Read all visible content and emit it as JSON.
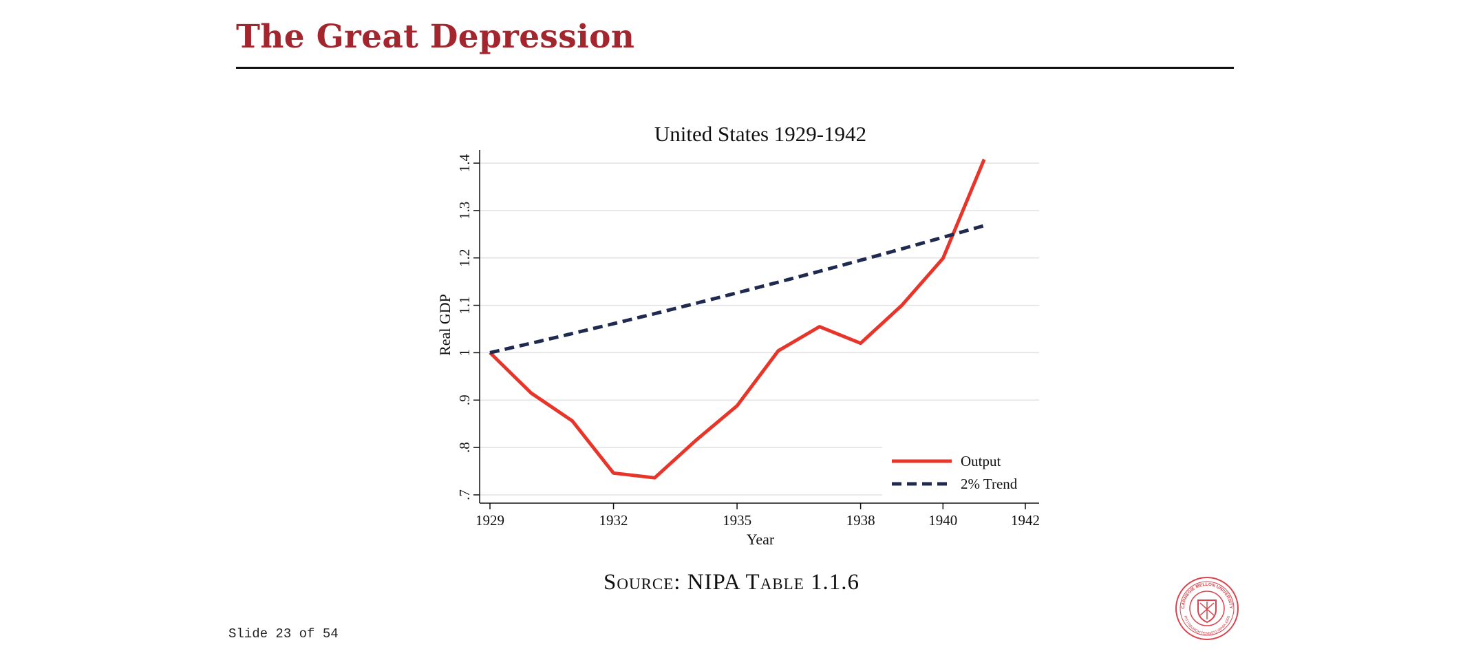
{
  "slide": {
    "title": "The Great Depression",
    "source": "Source: NIPA Table 1.1.6",
    "counter": "Slide 23 of 54",
    "title_color": "#a3262e",
    "seal": {
      "icon": "carnegie-mellon-seal-icon",
      "text_top": "CARNEGIE MELLON UNIVERSITY",
      "text_bottom": "PITTSBURGH PENNSYLVANIA 1900",
      "color": "#d9434c"
    }
  },
  "chart_data": {
    "type": "line",
    "title": "United States 1929-1942",
    "xlabel": "Year",
    "ylabel": "Real GDP",
    "xlim": [
      1929,
      1942
    ],
    "ylim": [
      0.7,
      1.4
    ],
    "xticks": [
      1929,
      1932,
      1935,
      1938,
      1940,
      1942
    ],
    "yticks": [
      0.7,
      0.8,
      0.9,
      1.0,
      1.1,
      1.2,
      1.3,
      1.4
    ],
    "ytick_labels": [
      ".7",
      ".8",
      ".9",
      "1",
      "1.1",
      "1.2",
      "1.3",
      "1.4"
    ],
    "grid": true,
    "legend_position": "bottom-right",
    "x": [
      1929,
      1930,
      1931,
      1932,
      1933,
      1934,
      1935,
      1936,
      1937,
      1938,
      1939,
      1940,
      1941
    ],
    "series": [
      {
        "name": "Output",
        "color": "#e8352a",
        "style": "solid",
        "values": [
          1.0,
          0.915,
          0.856,
          0.746,
          0.736,
          0.815,
          0.888,
          1.004,
          1.055,
          1.02,
          1.1,
          1.199,
          1.408
        ]
      },
      {
        "name": "2% Trend",
        "color": "#1f2a4e",
        "style": "dashed",
        "values": [
          1.0,
          1.02,
          1.0404,
          1.0612,
          1.0824,
          1.1041,
          1.1262,
          1.1487,
          1.1717,
          1.1951,
          1.219,
          1.2434,
          1.2682
        ]
      }
    ]
  }
}
